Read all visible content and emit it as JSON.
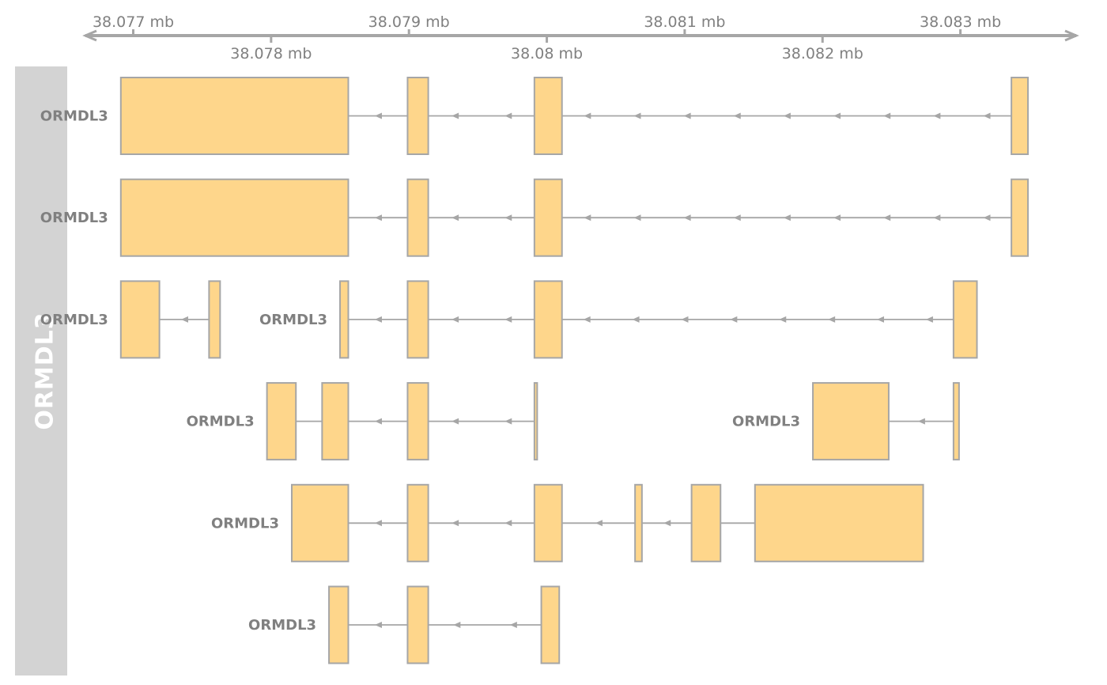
{
  "axis": {
    "unit": "mb",
    "ticks": [
      {
        "value": 38.077,
        "label": "38.077 mb",
        "side": "above"
      },
      {
        "value": 38.078,
        "label": "38.078 mb",
        "side": "below"
      },
      {
        "value": 38.079,
        "label": "38.079 mb",
        "side": "above"
      },
      {
        "value": 38.08,
        "label": "38.08 mb",
        "side": "below"
      },
      {
        "value": 38.081,
        "label": "38.081 mb",
        "side": "above"
      },
      {
        "value": 38.082,
        "label": "38.082 mb",
        "side": "below"
      },
      {
        "value": 38.083,
        "label": "38.083 mb",
        "side": "above"
      }
    ],
    "range_mb": [
      38.07626,
      38.08352
    ]
  },
  "track": {
    "title": "ORMDL3",
    "colors": {
      "panel": "#d3d3d3",
      "exon_fill": "#fed68b",
      "exon_border": "#a6a6a6",
      "intron": "#a6a6a6",
      "label": "#808080",
      "axis": "#a6a6a6"
    },
    "strand": "-"
  },
  "transcripts": [
    {
      "row": 1,
      "label": "ORMDL3",
      "exons": [
        [
          38.07691,
          38.07856
        ],
        [
          38.07899,
          38.07914
        ],
        [
          38.07991,
          38.08011
        ],
        [
          38.08337,
          38.08349
        ]
      ]
    },
    {
      "row": 2,
      "label": "ORMDL3",
      "exons": [
        [
          38.07691,
          38.07856
        ],
        [
          38.07899,
          38.07914
        ],
        [
          38.07991,
          38.08011
        ],
        [
          38.08337,
          38.08349
        ]
      ]
    },
    {
      "row": 3,
      "label": "ORMDL3",
      "exons": [
        [
          38.07691,
          38.07719
        ],
        [
          38.07755,
          38.07763
        ]
      ]
    },
    {
      "row": 3,
      "label": "ORMDL3",
      "exons": [
        [
          38.0785,
          38.07856
        ],
        [
          38.07899,
          38.07914
        ],
        [
          38.07991,
          38.08011
        ],
        [
          38.08295,
          38.08312
        ]
      ]
    },
    {
      "row": 4,
      "label": "ORMDL3",
      "exons": [
        [
          38.07797,
          38.07818
        ],
        [
          38.07837,
          38.07856
        ],
        [
          38.07899,
          38.07914
        ],
        [
          38.07991,
          38.07993
        ]
      ]
    },
    {
      "row": 4,
      "label": "ORMDL3",
      "exons": [
        [
          38.08193,
          38.08248
        ],
        [
          38.08295,
          38.08299
        ]
      ]
    },
    {
      "row": 5,
      "label": "ORMDL3",
      "exons": [
        [
          38.07815,
          38.07856
        ],
        [
          38.07899,
          38.07914
        ],
        [
          38.07991,
          38.08011
        ],
        [
          38.08064,
          38.08069
        ],
        [
          38.08105,
          38.08126
        ],
        [
          38.08151,
          38.08273
        ]
      ]
    },
    {
      "row": 6,
      "label": "ORMDL3",
      "exons": [
        [
          38.07842,
          38.07856
        ],
        [
          38.07899,
          38.07914
        ],
        [
          38.07996,
          38.08009
        ]
      ]
    }
  ]
}
